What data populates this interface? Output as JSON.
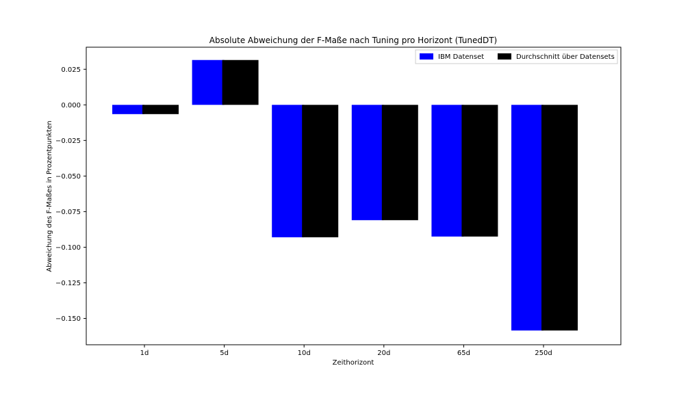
{
  "chart_data": {
    "type": "bar",
    "title": "Absolute Abweichung der F-Maße nach Tuning pro Horizont (TunedDT)",
    "xlabel": "Zeithorizont",
    "ylabel": "Abweichung des F-Maßes in Prozentpunkten",
    "categories": [
      "1d",
      "5d",
      "10d",
      "20d",
      "65d",
      "250d"
    ],
    "series": [
      {
        "name": "IBM Datenset",
        "color": "#0000ff",
        "values": [
          -0.0065,
          0.0315,
          -0.093,
          -0.081,
          -0.0925,
          -0.1585
        ]
      },
      {
        "name": "Durchschnitt über Datensets",
        "color": "#000000",
        "values": [
          -0.0065,
          0.0315,
          -0.093,
          -0.081,
          -0.0925,
          -0.1585
        ]
      }
    ],
    "yticks": [
      0.025,
      0.0,
      -0.025,
      -0.05,
      -0.075,
      -0.1,
      -0.125,
      -0.15
    ],
    "ytick_labels": [
      "0.025",
      "0.000",
      "−0.025",
      "−0.050",
      "−0.075",
      "−0.100",
      "−0.125",
      "−0.150"
    ],
    "ylim": [
      -0.1685,
      0.0405
    ],
    "grid": false,
    "legend_position": "top-right"
  }
}
